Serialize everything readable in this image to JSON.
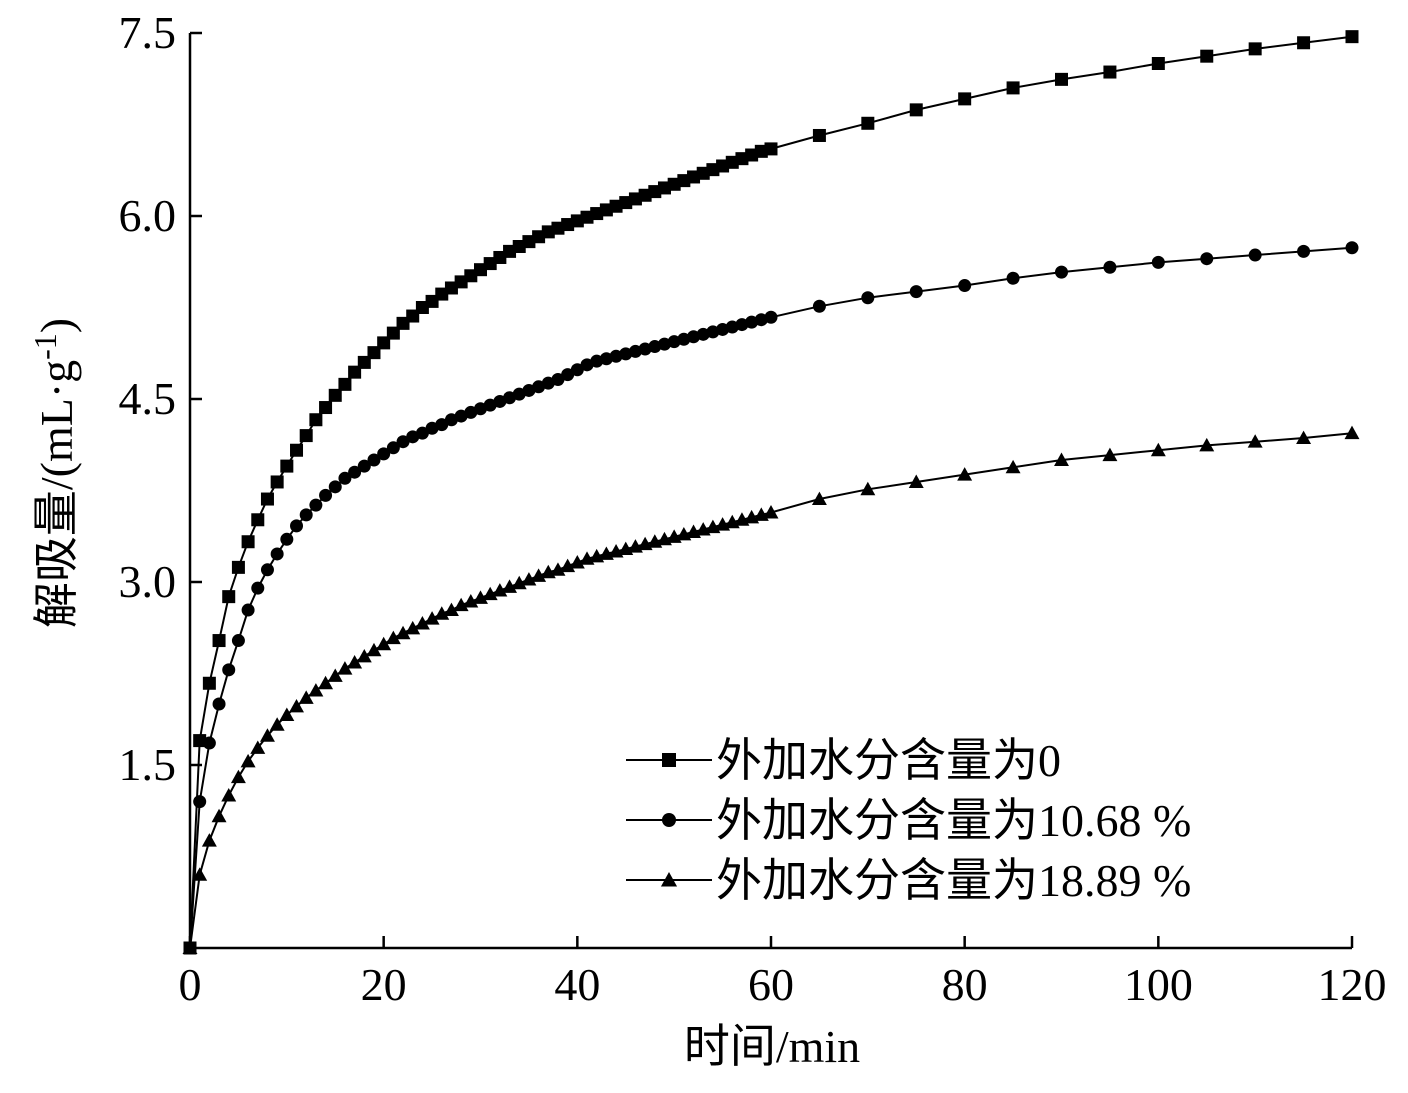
{
  "chart_data": {
    "type": "line",
    "title": "",
    "xlabel": "时间/min",
    "ylabel": "解吸量/(mL·g",
    "ylabel_sup": "-1",
    "ylabel_close": ")",
    "xlim": [
      0,
      120
    ],
    "ylim": [
      0,
      7.5
    ],
    "xticks": [
      0,
      20,
      40,
      60,
      80,
      100,
      120
    ],
    "xtick_labels": [
      "0",
      "20",
      "40",
      "60",
      "80",
      "100",
      "120"
    ],
    "yticks": [
      1.5,
      3.0,
      4.5,
      6.0,
      7.5
    ],
    "ytick_labels": [
      "1.5",
      "3.0",
      "4.5",
      "6.0",
      "7.5"
    ],
    "grid": false,
    "legend_position": "bottom-right",
    "series": [
      {
        "name": "外加水分含量为0",
        "marker": "square",
        "x": [
          0,
          1,
          2,
          3,
          4,
          5,
          6,
          7,
          8,
          9,
          10,
          11,
          12,
          13,
          14,
          15,
          16,
          17,
          18,
          19,
          20,
          21,
          22,
          23,
          24,
          25,
          26,
          27,
          28,
          29,
          30,
          31,
          32,
          33,
          34,
          35,
          36,
          37,
          38,
          39,
          40,
          41,
          42,
          43,
          44,
          45,
          46,
          47,
          48,
          49,
          50,
          51,
          52,
          53,
          54,
          55,
          56,
          57,
          58,
          59,
          60,
          65,
          70,
          75,
          80,
          85,
          90,
          95,
          100,
          105,
          110,
          115,
          120
        ],
        "values": [
          0.0,
          1.7,
          2.17,
          2.52,
          2.88,
          3.12,
          3.33,
          3.51,
          3.68,
          3.82,
          3.95,
          4.08,
          4.2,
          4.33,
          4.43,
          4.53,
          4.62,
          4.72,
          4.8,
          4.88,
          4.96,
          5.04,
          5.12,
          5.18,
          5.25,
          5.3,
          5.36,
          5.41,
          5.46,
          5.51,
          5.56,
          5.61,
          5.66,
          5.71,
          5.75,
          5.79,
          5.83,
          5.87,
          5.9,
          5.93,
          5.96,
          5.99,
          6.02,
          6.05,
          6.08,
          6.11,
          6.14,
          6.17,
          6.2,
          6.23,
          6.26,
          6.29,
          6.32,
          6.35,
          6.38,
          6.41,
          6.44,
          6.47,
          6.5,
          6.53,
          6.55,
          6.66,
          6.76,
          6.87,
          6.96,
          7.05,
          7.12,
          7.18,
          7.25,
          7.31,
          7.37,
          7.42,
          7.47
        ]
      },
      {
        "name": "外加水分含量为10.68 %",
        "marker": "circle",
        "x": [
          0,
          1,
          2,
          3,
          4,
          5,
          6,
          7,
          8,
          9,
          10,
          11,
          12,
          13,
          14,
          15,
          16,
          17,
          18,
          19,
          20,
          21,
          22,
          23,
          24,
          25,
          26,
          27,
          28,
          29,
          30,
          31,
          32,
          33,
          34,
          35,
          36,
          37,
          38,
          39,
          40,
          41,
          42,
          43,
          44,
          45,
          46,
          47,
          48,
          49,
          50,
          51,
          52,
          53,
          54,
          55,
          56,
          57,
          58,
          59,
          60,
          65,
          70,
          75,
          80,
          85,
          90,
          95,
          100,
          105,
          110,
          115,
          120
        ],
        "values": [
          0.0,
          1.2,
          1.68,
          2.0,
          2.28,
          2.52,
          2.77,
          2.95,
          3.1,
          3.23,
          3.35,
          3.46,
          3.55,
          3.63,
          3.71,
          3.78,
          3.85,
          3.9,
          3.95,
          4.0,
          4.05,
          4.1,
          4.15,
          4.19,
          4.22,
          4.26,
          4.29,
          4.33,
          4.36,
          4.39,
          4.42,
          4.45,
          4.48,
          4.51,
          4.54,
          4.57,
          4.6,
          4.63,
          4.66,
          4.7,
          4.74,
          4.78,
          4.81,
          4.83,
          4.85,
          4.87,
          4.89,
          4.91,
          4.93,
          4.95,
          4.97,
          4.99,
          5.01,
          5.03,
          5.05,
          5.07,
          5.09,
          5.11,
          5.13,
          5.15,
          5.17,
          5.26,
          5.33,
          5.38,
          5.43,
          5.49,
          5.54,
          5.58,
          5.62,
          5.65,
          5.68,
          5.71,
          5.74
        ]
      },
      {
        "name": "外加水分含量为18.89 %",
        "marker": "triangle",
        "x": [
          0,
          1,
          2,
          3,
          4,
          5,
          6,
          7,
          8,
          9,
          10,
          11,
          12,
          13,
          14,
          15,
          16,
          17,
          18,
          19,
          20,
          21,
          22,
          23,
          24,
          25,
          26,
          27,
          28,
          29,
          30,
          31,
          32,
          33,
          34,
          35,
          36,
          37,
          38,
          39,
          40,
          41,
          42,
          43,
          44,
          45,
          46,
          47,
          48,
          49,
          50,
          51,
          52,
          53,
          54,
          55,
          56,
          57,
          58,
          59,
          60,
          65,
          70,
          75,
          80,
          85,
          90,
          95,
          100,
          105,
          110,
          115,
          120
        ],
        "values": [
          0.0,
          0.6,
          0.88,
          1.08,
          1.25,
          1.4,
          1.53,
          1.64,
          1.74,
          1.83,
          1.91,
          1.98,
          2.05,
          2.11,
          2.17,
          2.23,
          2.29,
          2.34,
          2.39,
          2.44,
          2.49,
          2.54,
          2.58,
          2.62,
          2.66,
          2.7,
          2.74,
          2.77,
          2.81,
          2.84,
          2.87,
          2.9,
          2.93,
          2.96,
          2.99,
          3.02,
          3.05,
          3.08,
          3.1,
          3.13,
          3.16,
          3.19,
          3.21,
          3.23,
          3.25,
          3.27,
          3.29,
          3.31,
          3.33,
          3.35,
          3.37,
          3.39,
          3.41,
          3.43,
          3.45,
          3.47,
          3.49,
          3.51,
          3.53,
          3.55,
          3.57,
          3.68,
          3.76,
          3.82,
          3.88,
          3.94,
          4.0,
          4.04,
          4.08,
          4.12,
          4.15,
          4.18,
          4.22
        ]
      }
    ]
  }
}
